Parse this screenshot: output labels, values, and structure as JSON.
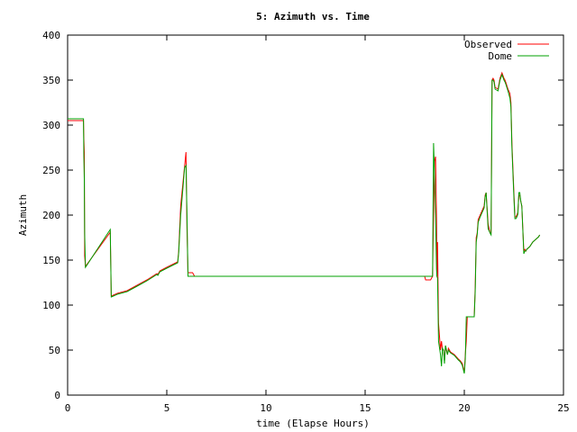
{
  "chart_data": {
    "type": "line",
    "title": "5: Azimuth vs. Time",
    "xlabel": "time (Elapse Hours)",
    "ylabel": "Azimuth",
    "xlim": [
      0,
      25
    ],
    "ylim": [
      0,
      400
    ],
    "xticks": [
      "0",
      "5",
      "10",
      "15",
      "20",
      "25"
    ],
    "yticks": [
      "0",
      "50",
      "100",
      "150",
      "200",
      "250",
      "300",
      "350",
      "400"
    ],
    "grid": false,
    "legend_position": "top-right",
    "series": [
      {
        "name": "Observed",
        "color": "#ff0000",
        "x": [
          0.0,
          0.8,
          0.82,
          0.84,
          0.86,
          0.9,
          2.15,
          2.2,
          2.3,
          2.5,
          3.0,
          3.5,
          4.0,
          4.5,
          4.55,
          4.65,
          5.0,
          5.55,
          5.6,
          5.7,
          5.9,
          5.97,
          6.02,
          6.07,
          6.1,
          6.3,
          6.4,
          8.0,
          10.0,
          12.0,
          14.0,
          16.0,
          18.0,
          18.05,
          18.3,
          18.4,
          18.45,
          18.5,
          18.55,
          18.6,
          18.62,
          18.65,
          18.7,
          18.8,
          18.85,
          18.9,
          18.95,
          19.0,
          19.05,
          19.15,
          19.2,
          19.3,
          19.5,
          19.7,
          19.8,
          19.9,
          20.0,
          20.05,
          20.1,
          20.15,
          20.2,
          20.25,
          20.3,
          20.5,
          20.55,
          20.6,
          20.65,
          20.7,
          20.8,
          21.0,
          21.05,
          21.1,
          21.2,
          21.3,
          21.35,
          21.4,
          21.45,
          21.5,
          21.55,
          21.7,
          21.8,
          21.9,
          22.0,
          22.05,
          22.1,
          22.2,
          22.3,
          22.35,
          22.4,
          22.5,
          22.55,
          22.6,
          22.65,
          22.7,
          22.75,
          22.8,
          22.85,
          22.9,
          23.0,
          23.05,
          23.1,
          23.15,
          23.3,
          23.45,
          23.6,
          23.75,
          23.8
        ],
        "y": [
          305,
          305,
          285,
          270,
          155,
          143,
          181,
          110,
          111,
          113,
          116,
          122,
          128,
          135,
          134,
          138,
          142,
          148,
          160,
          210,
          255,
          270,
          185,
          136,
          136,
          136,
          132,
          132,
          132,
          132,
          132,
          132,
          132,
          128,
          128,
          132,
          200,
          260,
          265,
          195,
          132,
          170,
          80,
          50,
          60,
          50,
          50,
          38,
          55,
          45,
          52,
          48,
          45,
          40,
          38,
          35,
          25,
          45,
          60,
          87,
          87,
          87,
          87,
          87,
          120,
          175,
          180,
          195,
          200,
          210,
          222,
          225,
          190,
          180,
          180,
          350,
          352,
          350,
          342,
          340,
          352,
          358,
          352,
          350,
          347,
          340,
          335,
          325,
          280,
          225,
          198,
          198,
          200,
          203,
          222,
          222,
          215,
          210,
          160,
          162,
          160,
          162,
          165,
          170,
          173,
          176,
          178
        ]
      },
      {
        "name": "Dome",
        "color": "#00a000",
        "x": [
          0.0,
          0.8,
          0.82,
          0.84,
          0.86,
          0.9,
          2.15,
          2.2,
          2.3,
          2.5,
          3.0,
          3.5,
          4.0,
          4.5,
          4.55,
          4.65,
          5.0,
          5.55,
          5.6,
          5.7,
          5.9,
          5.97,
          6.02,
          6.07,
          6.1,
          6.3,
          6.4,
          8.0,
          10.0,
          12.0,
          14.0,
          16.0,
          18.0,
          18.05,
          18.3,
          18.4,
          18.45,
          18.5,
          18.55,
          18.6,
          18.62,
          18.65,
          18.7,
          18.8,
          18.85,
          18.9,
          18.95,
          19.0,
          19.05,
          19.15,
          19.2,
          19.3,
          19.5,
          19.7,
          19.8,
          19.9,
          20.0,
          20.05,
          20.1,
          20.15,
          20.2,
          20.25,
          20.3,
          20.5,
          20.55,
          20.6,
          20.65,
          20.7,
          20.8,
          21.0,
          21.05,
          21.1,
          21.2,
          21.3,
          21.35,
          21.4,
          21.45,
          21.5,
          21.55,
          21.7,
          21.8,
          21.9,
          22.0,
          22.05,
          22.1,
          22.2,
          22.3,
          22.35,
          22.4,
          22.5,
          22.55,
          22.6,
          22.65,
          22.7,
          22.75,
          22.8,
          22.85,
          22.9,
          23.0,
          23.05,
          23.1,
          23.15,
          23.3,
          23.45,
          23.6,
          23.75,
          23.8
        ],
        "y": [
          307,
          307,
          265,
          240,
          180,
          142,
          184,
          109,
          110,
          112,
          115,
          121,
          127,
          134,
          133,
          137,
          141,
          147,
          158,
          200,
          253,
          255,
          200,
          132,
          132,
          132,
          132,
          132,
          132,
          132,
          132,
          132,
          132,
          132,
          132,
          132,
          280,
          245,
          200,
          140,
          132,
          130,
          60,
          45,
          32,
          52,
          50,
          35,
          55,
          45,
          50,
          47,
          44,
          39,
          37,
          33,
          24,
          40,
          87,
          87,
          87,
          87,
          87,
          87,
          115,
          170,
          178,
          192,
          198,
          208,
          220,
          225,
          185,
          180,
          178,
          350,
          350,
          348,
          340,
          338,
          350,
          356,
          350,
          348,
          345,
          338,
          330,
          320,
          275,
          220,
          196,
          196,
          198,
          201,
          225,
          225,
          215,
          210,
          157,
          160,
          160,
          162,
          165,
          170,
          173,
          176,
          178
        ]
      }
    ]
  }
}
